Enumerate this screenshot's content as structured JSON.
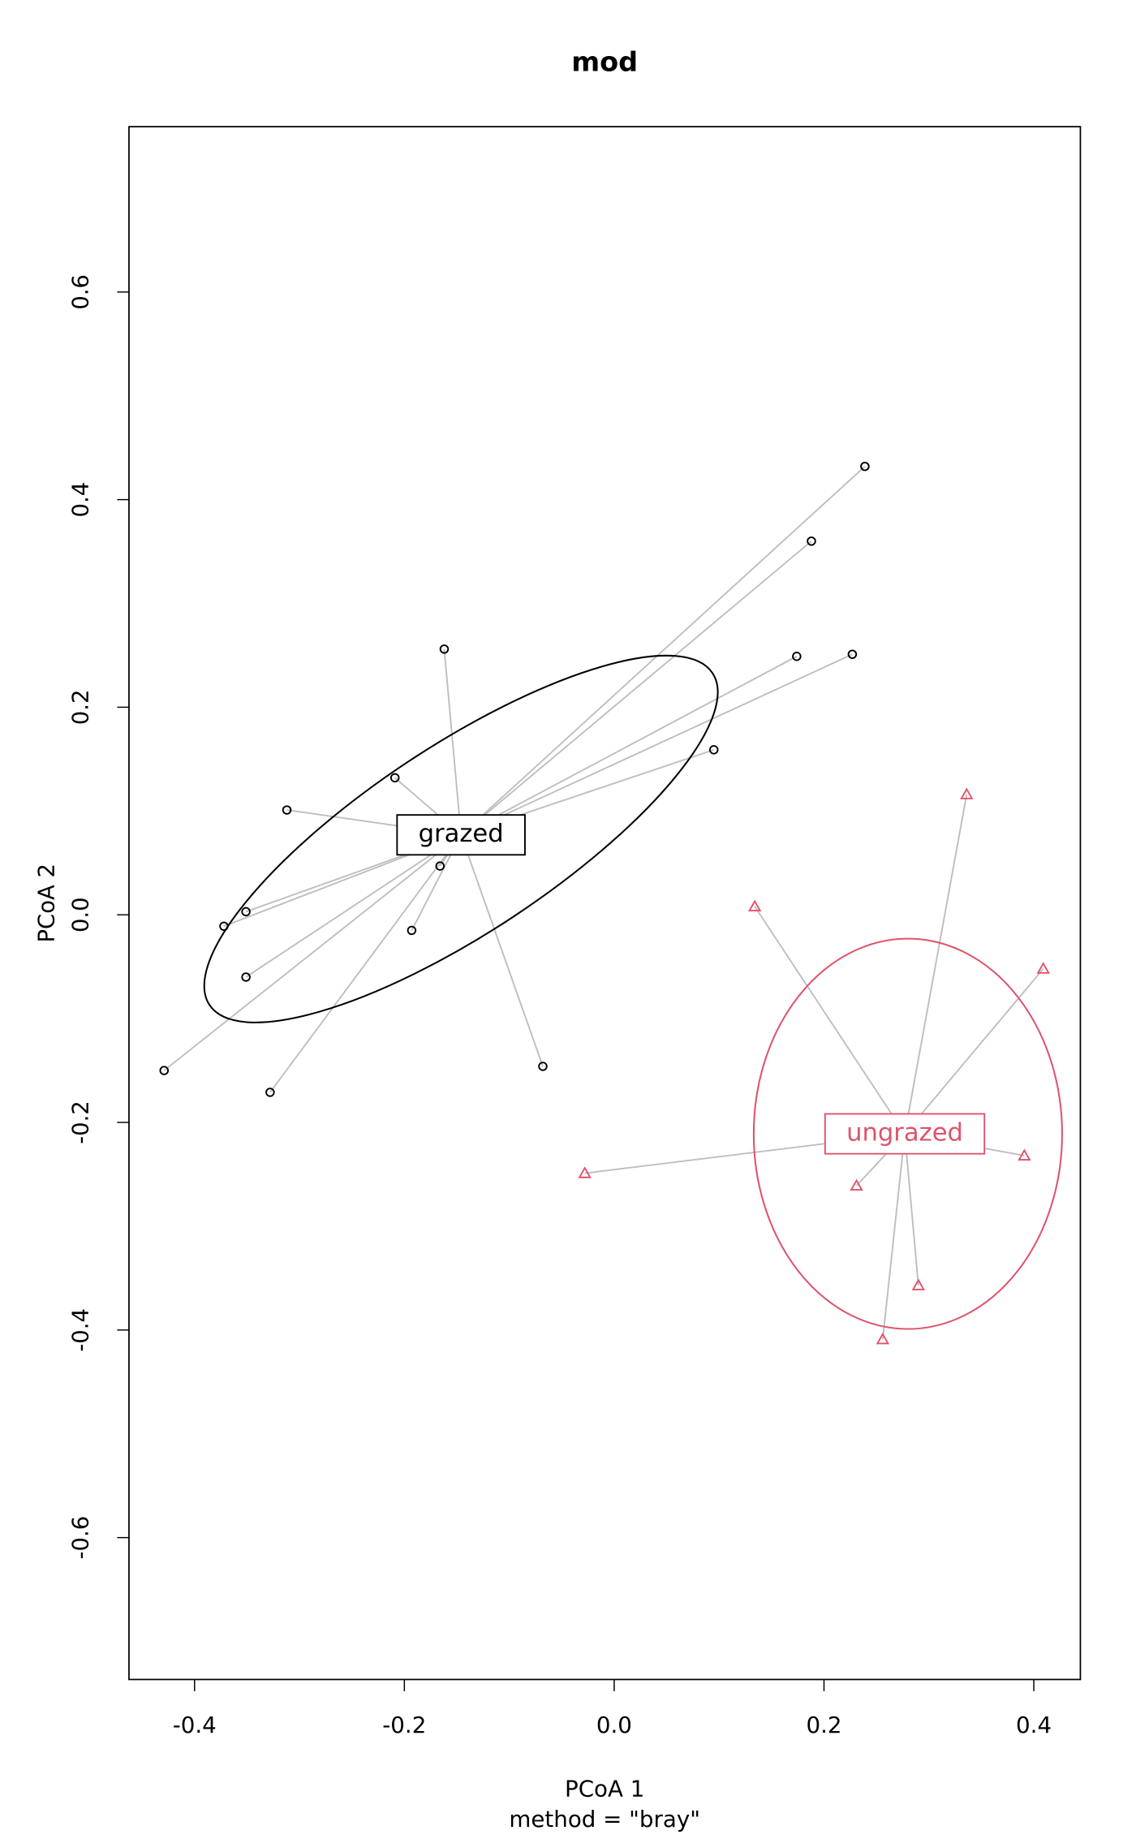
{
  "chart_data": {
    "type": "scatter",
    "title": "mod",
    "x_label": "PCoA 1",
    "subtitle": "method = \"bray\"",
    "y_label": "PCoA 2",
    "xlim": [
      -0.4625,
      0.4444
    ],
    "ylim": [
      -0.7367,
      0.7593
    ],
    "xticks": [
      -0.4,
      -0.2,
      {
        "value": 0,
        "label": "0.0"
      },
      0.2,
      0.4
    ],
    "yticks": [
      -0.6,
      -0.4,
      -0.2,
      {
        "value": 0,
        "label": "0.0"
      },
      0.2,
      0.4,
      0.6
    ],
    "spider_color": "#bebebe",
    "series": [
      {
        "name": "grazed",
        "color": "#000000",
        "marker": "circle",
        "x": [
          0.239,
          0.188,
          -0.162,
          0.174,
          0.227,
          0.095,
          -0.209,
          -0.312,
          -0.166,
          -0.351,
          -0.372,
          -0.193,
          -0.351,
          -0.068,
          -0.429,
          -0.328
        ],
        "values": [
          0.432,
          0.36,
          0.256,
          0.249,
          0.251,
          0.159,
          0.132,
          0.101,
          0.047,
          0.003,
          -0.011,
          -0.015,
          -0.06,
          -0.146,
          -0.15,
          -0.171
        ],
        "centroid": [
          -0.146,
          0.077
        ],
        "ellipse": {
          "cx": -0.146,
          "cy": 0.073,
          "a": 0.288,
          "b": 0.09,
          "angle": 33.7
        }
      },
      {
        "name": "ungrazed",
        "color": "#DF536B",
        "marker": "triangle",
        "x": [
          0.336,
          0.134,
          0.409,
          -0.028,
          0.391,
          0.231,
          0.29,
          0.256
        ],
        "values": [
          0.116,
          0.008,
          -0.052,
          -0.249,
          -0.232,
          -0.261,
          -0.357,
          -0.409
        ],
        "centroid": [
          0.277,
          -0.211
        ],
        "ellipse": {
          "cx": 0.28,
          "cy": -0.211,
          "a": 0.147,
          "b": 0.188,
          "angle": 0
        }
      }
    ]
  }
}
